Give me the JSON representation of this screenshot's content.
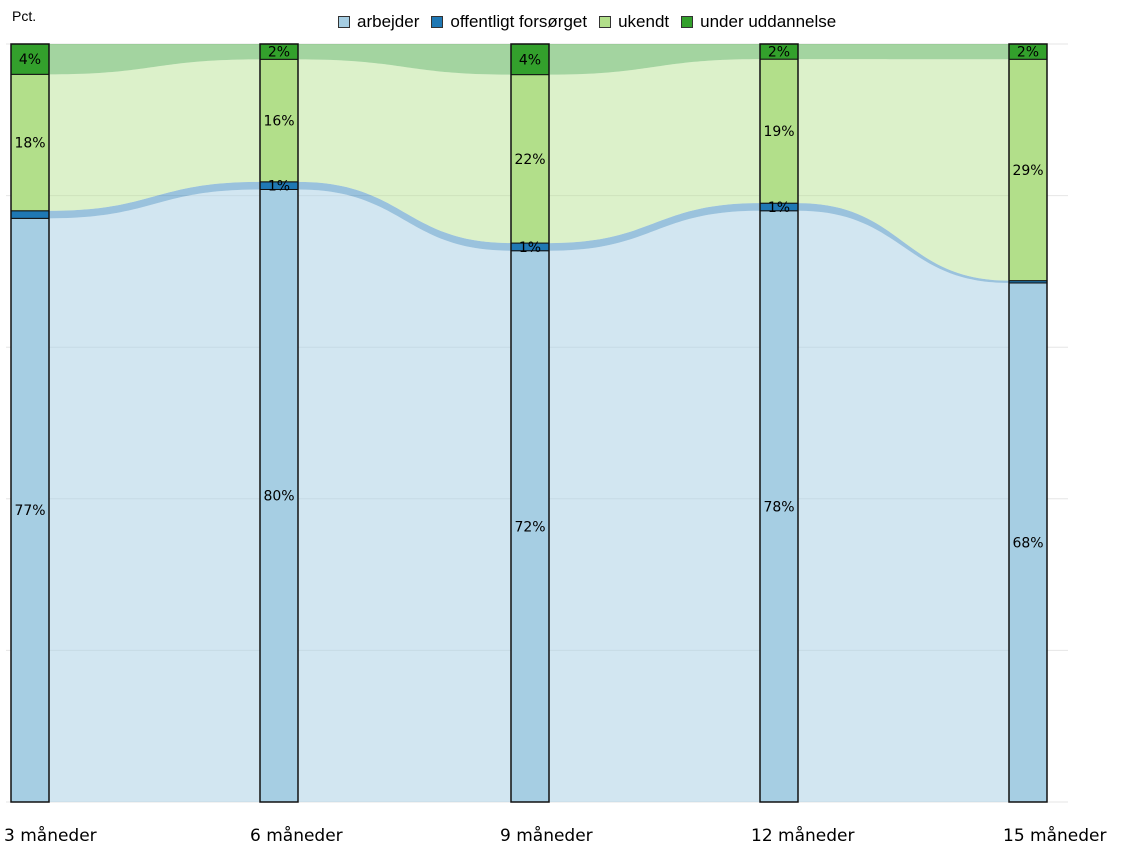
{
  "chart_data": {
    "type": "alluvial",
    "ylabel": "Pct.",
    "categories": [
      "3 måneder",
      "6 måneder",
      "9 måneder",
      "12 måneder",
      "15 måneder"
    ],
    "ylim": [
      0,
      100
    ],
    "grid": true,
    "legend_position": "top",
    "series": [
      {
        "name": "arbejder",
        "color": "#a6cee3",
        "values": [
          77,
          80,
          72,
          78,
          68
        ]
      },
      {
        "name": "offentligt forsørget",
        "color": "#1f78b4",
        "values": [
          1,
          1,
          1,
          1,
          0.3
        ]
      },
      {
        "name": "ukendt",
        "color": "#b2df8a",
        "values": [
          18,
          16,
          22,
          19,
          29
        ]
      },
      {
        "name": "under uddannelse",
        "color": "#33a02c",
        "values": [
          4,
          2,
          4,
          2,
          2
        ]
      }
    ],
    "bar_labels": [
      [
        "77%",
        "",
        "18%",
        "4%"
      ],
      [
        "80%",
        "1%",
        "16%",
        "2%"
      ],
      [
        "72%",
        "1%",
        "22%",
        "4%"
      ],
      [
        "78%",
        "1%",
        "19%",
        "2%"
      ],
      [
        "68%",
        "",
        "29%",
        "2%"
      ]
    ]
  }
}
